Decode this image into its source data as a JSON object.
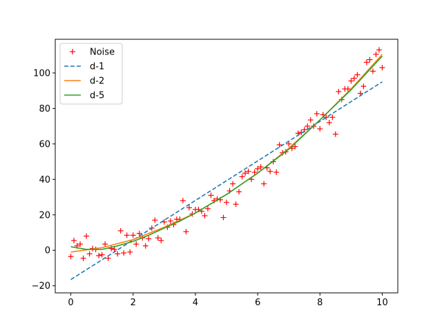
{
  "chart_data": {
    "type": "line",
    "title": "",
    "xlabel": "",
    "ylabel": "",
    "xlim": [
      -0.5,
      10.5
    ],
    "ylim": [
      -24,
      119
    ],
    "xticks": [
      0,
      2,
      4,
      6,
      8,
      10
    ],
    "yticks": [
      -20,
      0,
      20,
      40,
      60,
      80,
      100
    ],
    "grid": false,
    "legend_position": "top-left",
    "series": [
      {
        "name": "Noise",
        "kind": "scatter",
        "marker": "+",
        "color": "#ff0000",
        "x": [
          0.0,
          0.1,
          0.2,
          0.3,
          0.4,
          0.5,
          0.6,
          0.7,
          0.8,
          0.9,
          1.0,
          1.1,
          1.2,
          1.3,
          1.4,
          1.5,
          1.6,
          1.7,
          1.8,
          1.9,
          2.0,
          2.1,
          2.2,
          2.3,
          2.4,
          2.5,
          2.6,
          2.7,
          2.8,
          2.9,
          3.0,
          3.1,
          3.2,
          3.3,
          3.4,
          3.5,
          3.6,
          3.7,
          3.8,
          3.9,
          4.0,
          4.1,
          4.2,
          4.3,
          4.4,
          4.5,
          4.6,
          4.7,
          4.8,
          4.9,
          5.0,
          5.1,
          5.2,
          5.3,
          5.4,
          5.5,
          5.6,
          5.7,
          5.8,
          5.9,
          6.0,
          6.1,
          6.2,
          6.3,
          6.4,
          6.5,
          6.6,
          6.7,
          6.8,
          6.9,
          7.0,
          7.1,
          7.2,
          7.3,
          7.4,
          7.5,
          7.6,
          7.7,
          7.8,
          7.9,
          8.0,
          8.1,
          8.2,
          8.3,
          8.4,
          8.5,
          8.6,
          8.7,
          8.8,
          8.9,
          9.0,
          9.1,
          9.2,
          9.3,
          9.4,
          9.5,
          9.6,
          9.7,
          9.8,
          9.9,
          10.0
        ],
        "y": [
          -3.5,
          5.5,
          2.5,
          3.5,
          -4.5,
          8.0,
          -2.0,
          1.0,
          0.5,
          -3.0,
          -2.5,
          3.5,
          -4.5,
          1.0,
          0.5,
          -2.0,
          11.0,
          -1.5,
          8.5,
          -1.0,
          8.5,
          3.5,
          9.5,
          7.0,
          2.5,
          6.5,
          12.5,
          17.0,
          7.0,
          5.5,
          16.0,
          13.0,
          16.5,
          14.5,
          17.5,
          17.5,
          28.0,
          10.5,
          24.0,
          20.5,
          23.0,
          23.0,
          22.0,
          19.5,
          23.5,
          31.0,
          28.0,
          29.0,
          28.5,
          18.5,
          27.0,
          33.5,
          37.5,
          26.0,
          33.0,
          41.5,
          43.5,
          44.5,
          40.0,
          44.0,
          46.0,
          47.0,
          37.5,
          46.5,
          44.5,
          50.0,
          44.0,
          59.5,
          55.0,
          55.5,
          60.0,
          57.5,
          58.5,
          66.0,
          66.5,
          68.0,
          70.0,
          73.5,
          70.0,
          77.0,
          68.5,
          76.5,
          75.0,
          72.0,
          75.0,
          65.5,
          89.5,
          85.0,
          91.0,
          91.0,
          95.5,
          97.0,
          99.0,
          88.5,
          92.5,
          106.0,
          107.5,
          101.0,
          110.5,
          113.0,
          103.0
        ]
      },
      {
        "name": "d-1",
        "kind": "line",
        "style": "dashed",
        "color": "#1f77b4",
        "x": [
          0,
          10
        ],
        "y": [
          -16.5,
          95.0
        ]
      },
      {
        "name": "d-2",
        "kind": "line",
        "style": "solid",
        "color": "#ff7f0e",
        "x": [
          0,
          1,
          2,
          3,
          4,
          5,
          6,
          7,
          8,
          9,
          10
        ],
        "y": [
          -1.0,
          1.5,
          6.0,
          13.0,
          21.0,
          31.5,
          43.5,
          57.5,
          73.5,
          91.0,
          110.5
        ]
      },
      {
        "name": "d-5",
        "kind": "line",
        "style": "solid",
        "color": "#2ca02c",
        "x": [
          0,
          0.5,
          1,
          1.5,
          2,
          2.5,
          3,
          3.5,
          4,
          5,
          6,
          7,
          8,
          9,
          10
        ],
        "y": [
          2.0,
          0.5,
          0.5,
          2.5,
          5.0,
          8.5,
          12.5,
          16.5,
          21.0,
          31.5,
          43.5,
          57.0,
          73.5,
          90.5,
          109.5
        ]
      }
    ]
  }
}
